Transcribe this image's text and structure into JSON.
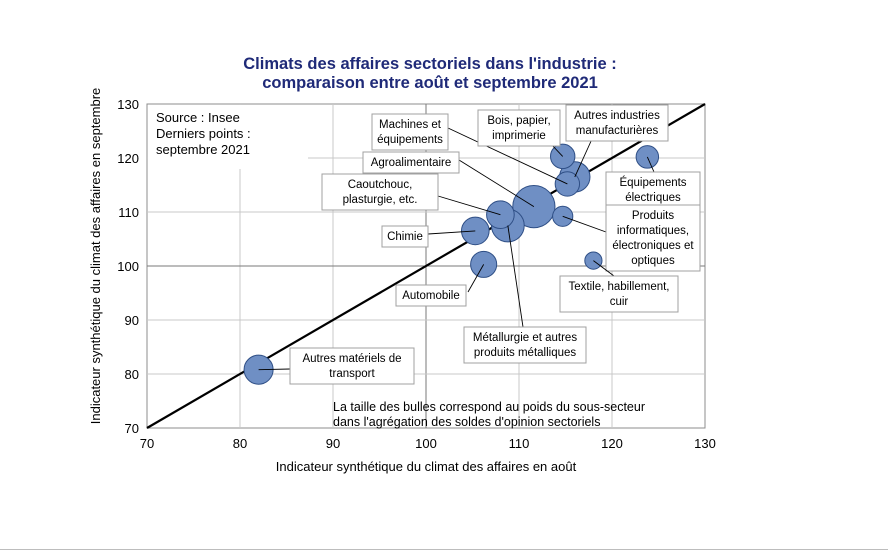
{
  "chart_data": {
    "type": "scatter",
    "title_lines": [
      "Climats des affaires sectoriels dans l'industrie :",
      "comparaison entre août et septembre 2021"
    ],
    "xlabel": "Indicateur synthétique du climat des affaires en août",
    "ylabel": "Indicateur synthétique du climat des affaires en septembre",
    "xlim": [
      70,
      130
    ],
    "ylim": [
      70,
      130
    ],
    "xticks": [
      70,
      80,
      90,
      100,
      110,
      120,
      130
    ],
    "yticks": [
      70,
      80,
      90,
      100,
      110,
      120,
      130
    ],
    "grid": true,
    "reference_line": "y = x",
    "source_lines": [
      "Source : Insee",
      "Derniers points :",
      "septembre 2021"
    ],
    "note_lines": [
      "La taille des bulles correspond au poids du sous-secteur",
      "dans l'agrégation des soldes d'opinion sectoriels"
    ],
    "colors": {
      "bubble_fill": "#6f8fc4",
      "bubble_stroke": "#2f4f86",
      "title": "#1f2a78",
      "diagonal": "#000000",
      "grid": "#c8c8c8"
    },
    "points": [
      {
        "name": "Autres matériels de transport",
        "label_lines": [
          "Autres matériels de",
          "transport"
        ],
        "x": 82,
        "y": 80.8,
        "weight": 7
      },
      {
        "name": "Automobile",
        "label_lines": [
          "Automobile"
        ],
        "x": 106.2,
        "y": 100.3,
        "weight": 5
      },
      {
        "name": "Chimie",
        "label_lines": [
          "Chimie"
        ],
        "x": 105.3,
        "y": 106.5,
        "weight": 6
      },
      {
        "name": "Caoutchouc, plasturgie, etc.",
        "label_lines": [
          "Caoutchouc,",
          "plasturgie, etc."
        ],
        "x": 108,
        "y": 109.5,
        "weight": 6
      },
      {
        "name": "Métallurgie et autres produits métalliques",
        "label_lines": [
          "Métallurgie et autres",
          "produits métalliques"
        ],
        "x": 108.8,
        "y": 107.5,
        "weight": 10
      },
      {
        "name": "Agroalimentaire",
        "label_lines": [
          "Agroalimentaire"
        ],
        "x": 111.6,
        "y": 111,
        "weight": 20
      },
      {
        "name": "Machines et équipements",
        "label_lines": [
          "Machines et",
          "équipements"
        ],
        "x": 115.2,
        "y": 115.2,
        "weight": 4
      },
      {
        "name": "Autres industries manufacturières",
        "label_lines": [
          "Autres industries",
          "manufacturières"
        ],
        "x": 116,
        "y": 116.5,
        "weight": 8
      },
      {
        "name": "Bois, papier, imprimerie",
        "label_lines": [
          "Bois, papier,",
          "imprimerie"
        ],
        "x": 114.7,
        "y": 120.3,
        "weight": 4
      },
      {
        "name": "Équipements électriques",
        "label_lines": [
          "Équipements",
          "électriques"
        ],
        "x": 123.8,
        "y": 120.2,
        "weight": 3
      },
      {
        "name": "Produits informatiques, électroniques et optiques",
        "label_lines": [
          "Produits",
          "informatiques,",
          "électroniques et",
          "optiques"
        ],
        "x": 114.7,
        "y": 109.2,
        "weight": 2
      },
      {
        "name": "Textile, habillement, cuir",
        "label_lines": [
          "Textile, habillement,",
          "cuir"
        ],
        "x": 118,
        "y": 101,
        "weight": 1
      }
    ]
  }
}
